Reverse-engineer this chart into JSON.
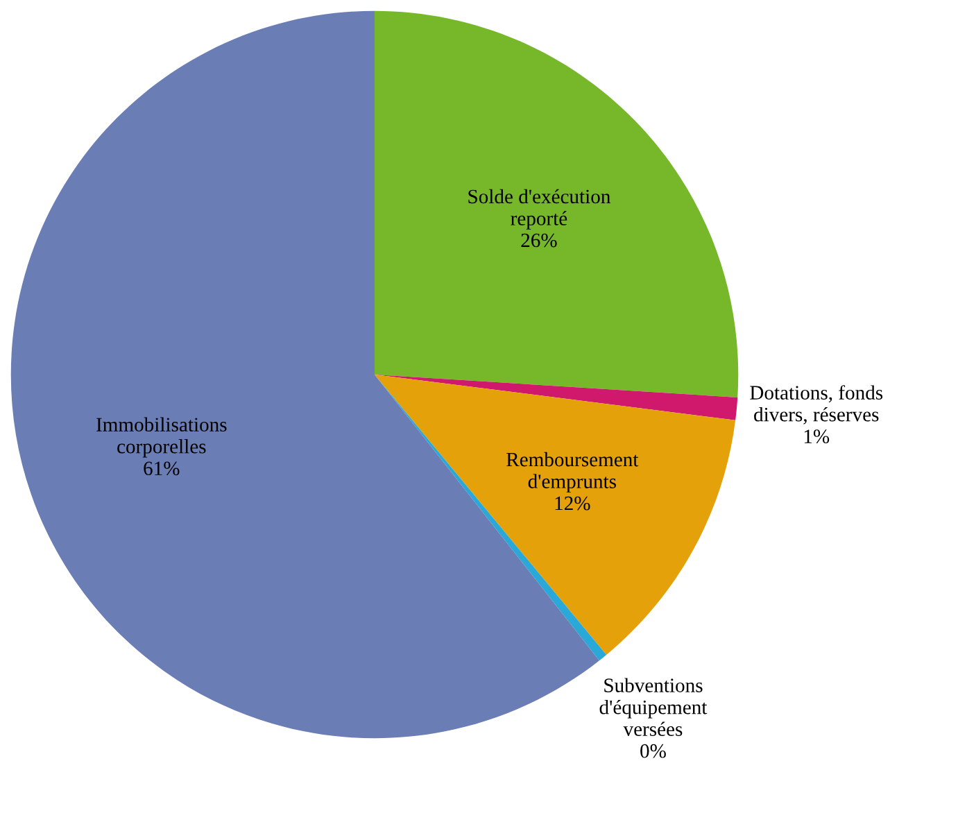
{
  "chart_data": {
    "type": "pie",
    "categories": [
      "Solde d'exécution\nreporté",
      "Dotations, fonds\ndivers, réserves",
      "Remboursement\nd'emprunts",
      "Subventions\nd'équipement\nversées",
      "Immobilisations\ncorporelles"
    ],
    "values": [
      26,
      1,
      12,
      0.4,
      60.6
    ],
    "value_labels": [
      "26%",
      "1%",
      "12%",
      "0%",
      "61%"
    ],
    "colors": [
      "#76b82a",
      "#d0186c",
      "#e4a10a",
      "#2aa8d8",
      "#6a7db5"
    ]
  }
}
